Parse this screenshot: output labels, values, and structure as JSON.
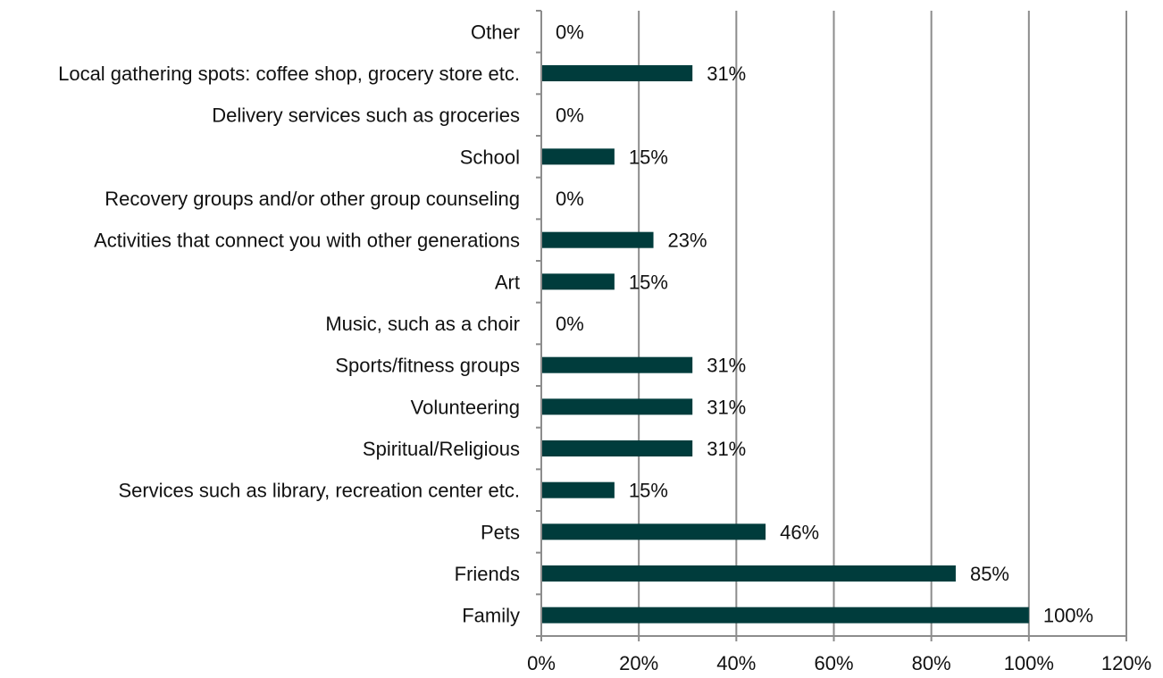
{
  "chart_data": {
    "type": "bar",
    "orientation": "horizontal",
    "title": "",
    "xlabel": "",
    "ylabel": "",
    "categories": [
      "Other",
      "Local gathering spots: coffee shop, grocery store etc.",
      "Delivery services such as groceries",
      "School",
      "Recovery groups and/or other group counseling",
      "Activities that connect you with other generations",
      "Art",
      "Music, such as a choir",
      "Sports/fitness groups",
      "Volunteering",
      "Spiritual/Religious",
      "Services such as library, recreation center etc.",
      "Pets",
      "Friends",
      "Family"
    ],
    "values": [
      0,
      31,
      0,
      15,
      0,
      23,
      15,
      0,
      31,
      31,
      31,
      15,
      46,
      85,
      100
    ],
    "value_labels": [
      "0%",
      "31%",
      "0%",
      "15%",
      "0%",
      "23%",
      "15%",
      "0%",
      "31%",
      "31%",
      "31%",
      "15%",
      "46%",
      "85%",
      "100%"
    ],
    "x_ticks": [
      "0%",
      "20%",
      "40%",
      "60%",
      "80%",
      "100%",
      "120%"
    ],
    "xlim": [
      0,
      120
    ],
    "grid": "vertical",
    "legend": "none",
    "bar_color": "#003C3C",
    "grid_color": "#8C8C8C",
    "axis_color": "#8C8C8C"
  }
}
